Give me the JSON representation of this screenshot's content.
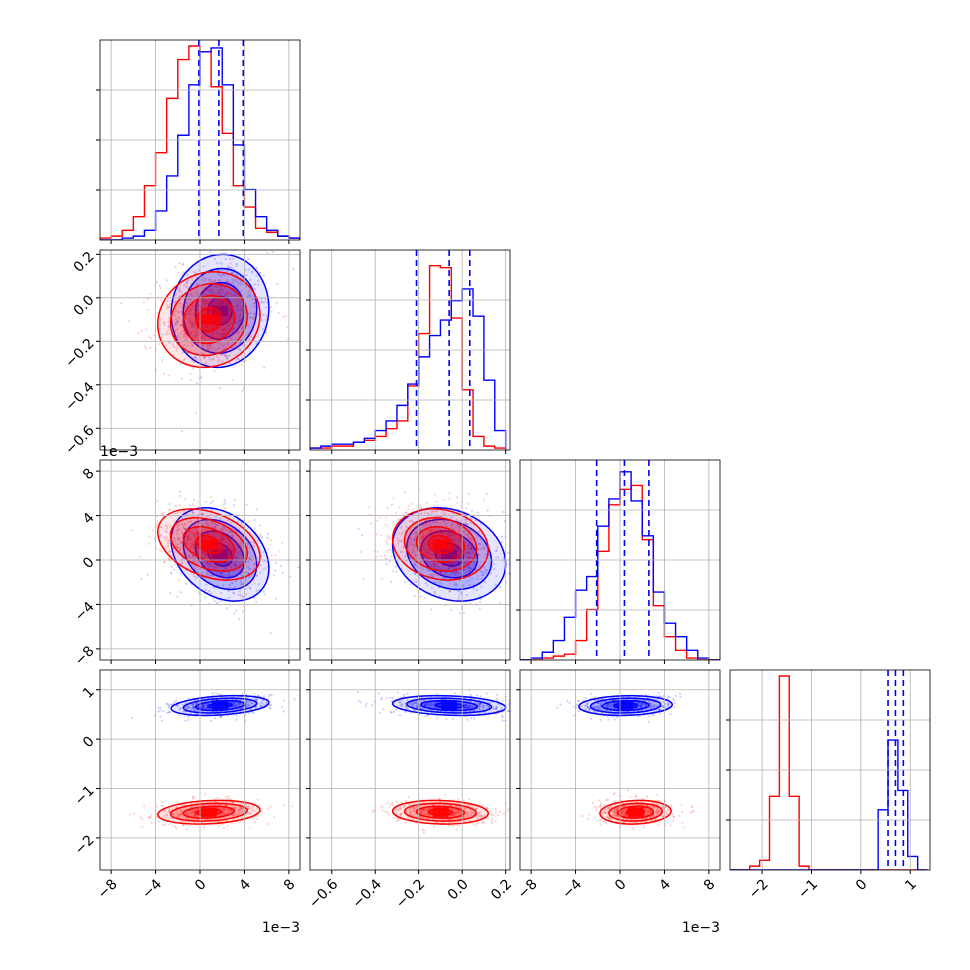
{
  "chart_data": {
    "type": "corner",
    "parameters": [
      {
        "range": [
          -9,
          9
        ],
        "ticks": [
          -8,
          -4,
          0,
          4,
          8
        ],
        "tick_labels": [
          "−8",
          "−4",
          "0",
          "4",
          "8"
        ],
        "offset_label": "1e−3"
      },
      {
        "range": [
          -0.7,
          0.22
        ],
        "ticks": [
          -0.6,
          -0.4,
          -0.2,
          0.0,
          0.2
        ],
        "tick_labels": [
          "−0.6",
          "−0.4",
          "−0.2",
          "0.0",
          "0.2"
        ],
        "offset_label": ""
      },
      {
        "range": [
          -9,
          9
        ],
        "ticks": [
          -8,
          -4,
          0,
          4,
          8
        ],
        "tick_labels": [
          "−8",
          "−4",
          "0",
          "4",
          "8"
        ],
        "offset_label": "1e−3"
      },
      {
        "range": [
          -2.65,
          1.4
        ],
        "ticks": [
          -2,
          -1,
          0,
          1
        ],
        "tick_labels": [
          "−2",
          "−1",
          "0",
          "1"
        ],
        "offset_label": ""
      }
    ],
    "series": [
      {
        "color": "#ff0000",
        "mean": [
          0.0008,
          -0.1,
          0.0014,
          -1.48
        ],
        "std": [
          0.0023,
          0.11,
          0.0016,
          0.12
        ],
        "corr": [
          [
            0,
            1,
            0.1
          ],
          [
            0,
            2,
            -0.35
          ],
          [
            1,
            2,
            -0.15
          ],
          [
            0,
            3,
            0.2
          ],
          [
            1,
            3,
            -0.1
          ],
          [
            2,
            3,
            0.1
          ]
        ],
        "hist": [
          {
            "edges": [
              -9,
              -8,
              -7,
              -6,
              -5,
              -4,
              -3,
              -2,
              -1,
              0,
              1,
              2,
              3,
              4,
              5,
              6,
              7,
              8,
              9
            ],
            "counts": [
              0.01,
              0.02,
              0.05,
              0.12,
              0.28,
              0.45,
              0.73,
              0.93,
              1.0,
              0.97,
              0.79,
              0.55,
              0.28,
              0.17,
              0.06,
              0.04,
              0.02,
              0.01
            ]
          },
          {
            "edges": [
              -0.7,
              -0.65,
              -0.6,
              -0.55,
              -0.5,
              -0.45,
              -0.4,
              -0.35,
              -0.3,
              -0.25,
              -0.2,
              -0.15,
              -0.1,
              -0.05,
              0.0,
              0.05,
              0.1,
              0.15,
              0.2
            ],
            "counts": [
              0.01,
              0.01,
              0.02,
              0.02,
              0.04,
              0.05,
              0.07,
              0.11,
              0.15,
              0.33,
              0.6,
              0.95,
              0.94,
              0.68,
              0.31,
              0.07,
              0.02,
              0.01
            ]
          },
          {
            "edges": [
              -9,
              -8,
              -7,
              -6,
              -5,
              -4,
              -3,
              -2,
              -1,
              0,
              1,
              2,
              3,
              4,
              5,
              6,
              7,
              8,
              9
            ],
            "counts": [
              0.0,
              0.0,
              0.01,
              0.02,
              0.03,
              0.1,
              0.26,
              0.56,
              0.8,
              0.88,
              0.9,
              0.62,
              0.28,
              0.12,
              0.05,
              0.01,
              0.0,
              0.0
            ]
          },
          {
            "edges": [
              -2.65,
              -2.45,
              -2.25,
              -2.05,
              -1.85,
              -1.65,
              -1.45,
              -1.25,
              -1.05,
              -0.85,
              -0.65,
              -0.45,
              -0.25,
              -0.05,
              0.15,
              0.35,
              0.55,
              0.75,
              0.95,
              1.15,
              1.35
            ],
            "counts": [
              0.0,
              0.0,
              0.02,
              0.05,
              0.38,
              1.0,
              0.38,
              0.02,
              0.0,
              0.0,
              0.0,
              0.0,
              0.0,
              0.0,
              0.0,
              0.0,
              0.0,
              0.0,
              0.0,
              0.0
            ]
          }
        ]
      },
      {
        "color": "#0000ff",
        "mean": [
          0.0018,
          -0.06,
          0.0005,
          0.68
        ],
        "std": [
          0.0022,
          0.13,
          0.0021,
          0.1
        ],
        "corr": [
          [
            0,
            1,
            0.05
          ],
          [
            0,
            2,
            -0.3
          ],
          [
            1,
            2,
            -0.2
          ],
          [
            0,
            3,
            0.3
          ],
          [
            1,
            3,
            -0.2
          ],
          [
            2,
            3,
            0.1
          ]
        ],
        "hist": [
          {
            "edges": [
              -9,
              -8,
              -7,
              -6,
              -5,
              -4,
              -3,
              -2,
              -1,
              0,
              1,
              2,
              3,
              4,
              5,
              6,
              7,
              8,
              9
            ],
            "counts": [
              0.0,
              0.0,
              0.01,
              0.02,
              0.05,
              0.15,
              0.33,
              0.54,
              0.8,
              0.97,
              0.99,
              0.8,
              0.49,
              0.26,
              0.12,
              0.05,
              0.02,
              0.01
            ]
          },
          {
            "edges": [
              -0.7,
              -0.65,
              -0.6,
              -0.55,
              -0.5,
              -0.45,
              -0.4,
              -0.35,
              -0.3,
              -0.25,
              -0.2,
              -0.15,
              -0.1,
              -0.05,
              0.0,
              0.05,
              0.1,
              0.15,
              0.2
            ],
            "counts": [
              0.01,
              0.02,
              0.03,
              0.03,
              0.04,
              0.06,
              0.1,
              0.15,
              0.23,
              0.34,
              0.48,
              0.59,
              0.67,
              0.77,
              0.83,
              0.69,
              0.36,
              0.1
            ]
          },
          {
            "edges": [
              -9,
              -8,
              -7,
              -6,
              -5,
              -4,
              -3,
              -2,
              -1,
              0,
              1,
              2,
              3,
              4,
              5,
              6,
              7,
              8,
              9
            ],
            "counts": [
              0.0,
              0.01,
              0.04,
              0.1,
              0.22,
              0.36,
              0.43,
              0.69,
              0.83,
              0.97,
              0.82,
              0.64,
              0.35,
              0.19,
              0.12,
              0.05,
              0.01,
              0.0
            ]
          },
          {
            "edges": [
              -2.65,
              -2.45,
              -2.25,
              -2.05,
              -1.85,
              -1.65,
              -1.45,
              -1.25,
              -1.05,
              -0.85,
              -0.65,
              -0.45,
              -0.25,
              -0.05,
              0.15,
              0.35,
              0.55,
              0.75,
              0.95,
              1.15,
              1.35
            ],
            "counts": [
              0.0,
              0.0,
              0.0,
              0.0,
              0.0,
              0.0,
              0.0,
              0.0,
              0.0,
              0.0,
              0.0,
              0.0,
              0.0,
              0.0,
              0.0,
              0.31,
              0.67,
              0.41,
              0.07,
              0.0
            ]
          }
        ]
      }
    ],
    "quantile_lines": {
      "color": "#0000ff",
      "style": "dashed",
      "values": [
        [
          -0.0001,
          0.0017,
          0.0039
        ],
        [
          -0.21,
          -0.06,
          0.035
        ],
        [
          -0.0021,
          0.0004,
          0.0026
        ],
        [
          0.55,
          0.7,
          0.86
        ]
      ]
    },
    "contour_levels": [
      0.5,
      1.0,
      1.5,
      2.0
    ],
    "grid": true,
    "legend": "none",
    "title": "",
    "xlabel": "",
    "ylabel": ""
  }
}
